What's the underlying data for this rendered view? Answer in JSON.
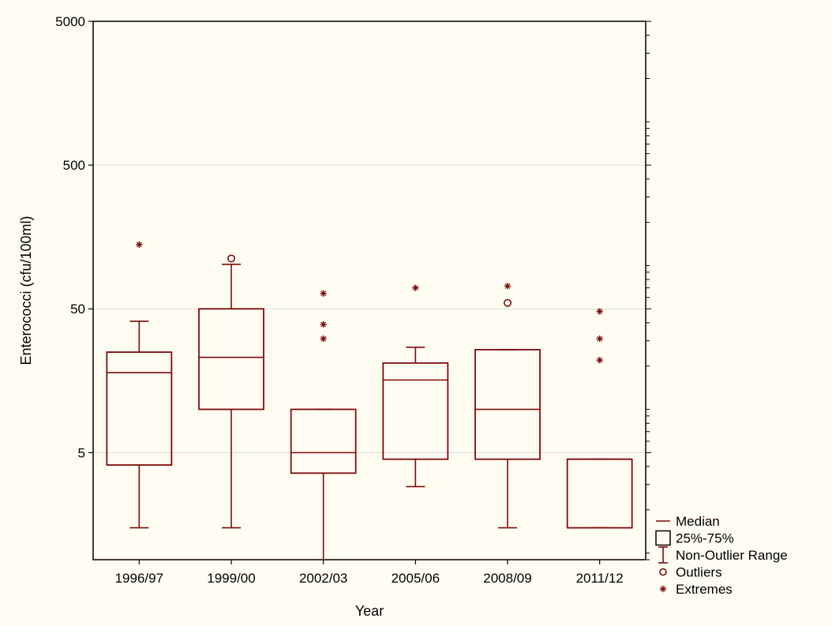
{
  "chart_data": {
    "type": "boxplot",
    "xlabel": "Year",
    "ylabel": "Enterococci (cfu/100ml)",
    "y_scale": "log",
    "ylim": [
      0.9,
      5000
    ],
    "yticks": [
      5,
      50,
      500,
      5000
    ],
    "grid": true,
    "categories": [
      "1996/97",
      "1999/00",
      "2002/03",
      "2005/06",
      "2008/09",
      "2011/12"
    ],
    "boxes": [
      {
        "category": "1996/97",
        "min": 1.5,
        "q1": 4.1,
        "median": 18,
        "q3": 25,
        "max": 41,
        "outliers": [],
        "extremes": [
          140
        ]
      },
      {
        "category": "1999/00",
        "min": 1.5,
        "q1": 10,
        "median": 23,
        "q3": 50,
        "max": 102,
        "outliers": [
          112
        ],
        "extremes": []
      },
      {
        "category": "2002/03",
        "min": 0.9,
        "q1": 3.6,
        "median": 5,
        "q3": 10,
        "max": 10,
        "outliers": [],
        "extremes": [
          31,
          39,
          64
        ]
      },
      {
        "category": "2005/06",
        "min": 2.9,
        "q1": 4.5,
        "median": 16,
        "q3": 21,
        "max": 27,
        "outliers": [],
        "extremes": [
          70
        ]
      },
      {
        "category": "2008/09",
        "min": 1.5,
        "q1": 4.5,
        "median": 10,
        "q3": 26,
        "max": 26,
        "outliers": [
          55
        ],
        "extremes": [
          72
        ]
      },
      {
        "category": "2011/12",
        "min": 1.5,
        "q1": 1.5,
        "median": 4.5,
        "q3": 4.5,
        "max": 4.5,
        "outliers": [],
        "extremes": [
          22,
          31,
          48
        ]
      }
    ],
    "legend": {
      "placement": "bottom-right",
      "entries": [
        "Median",
        "25%-75%",
        "Non-Outlier Range",
        "Outliers",
        "Extremes"
      ]
    },
    "colors": {
      "series": "#7a0c0c",
      "background": "#fffcf1",
      "grid": "#dcdcdc"
    }
  }
}
